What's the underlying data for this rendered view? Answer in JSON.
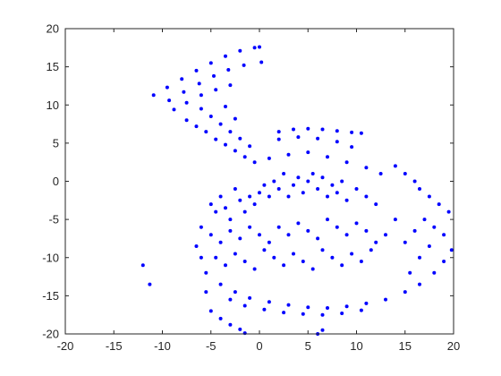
{
  "chart_data": {
    "type": "scatter",
    "title": "",
    "xlabel": "",
    "ylabel": "",
    "xlim": [
      -20,
      20
    ],
    "ylim": [
      -20,
      20
    ],
    "xticks": [
      -20,
      -15,
      -10,
      -5,
      0,
      5,
      10,
      15,
      20
    ],
    "yticks": [
      -20,
      -15,
      -10,
      -5,
      0,
      5,
      10,
      15,
      20
    ],
    "xtick_labels": [
      "-20",
      "-15",
      "-10",
      "-5",
      "0",
      "5",
      "10",
      "15",
      "20"
    ],
    "ytick_labels": [
      "-20",
      "-15",
      "-10",
      "-5",
      "0",
      "5",
      "10",
      "15",
      "20"
    ],
    "grid": false,
    "marker_color": "#0000ff",
    "series": [
      {
        "points": [
          [
            -10.9,
            11.3
          ],
          [
            -9.5,
            12.3
          ],
          [
            -8.0,
            13.4
          ],
          [
            -6.5,
            14.5
          ],
          [
            -5.0,
            15.5
          ],
          [
            -3.5,
            16.4
          ],
          [
            -2.0,
            17.1
          ],
          [
            -0.5,
            17.5
          ],
          [
            0.0,
            17.6
          ],
          [
            -9.3,
            10.6
          ],
          [
            -7.8,
            11.7
          ],
          [
            -6.2,
            12.8
          ],
          [
            -4.7,
            13.8
          ],
          [
            -3.2,
            14.6
          ],
          [
            -1.6,
            15.2
          ],
          [
            0.2,
            15.6
          ],
          [
            -8.8,
            9.4
          ],
          [
            -7.5,
            10.3
          ],
          [
            -6.0,
            11.3
          ],
          [
            -4.5,
            12.0
          ],
          [
            -3.0,
            12.6
          ],
          [
            -7.5,
            8.0
          ],
          [
            -6.5,
            7.2
          ],
          [
            -5.5,
            6.5
          ],
          [
            -4.5,
            5.5
          ],
          [
            -3.5,
            4.8
          ],
          [
            -2.5,
            4.0
          ],
          [
            -1.5,
            3.2
          ],
          [
            -0.5,
            2.5
          ],
          [
            -6.0,
            9.5
          ],
          [
            -5.0,
            8.5
          ],
          [
            -4.0,
            7.5
          ],
          [
            -3.0,
            6.5
          ],
          [
            -2.0,
            5.6
          ],
          [
            -1.0,
            4.6
          ],
          [
            -3.5,
            9.8
          ],
          [
            -2.5,
            8.2
          ],
          [
            2.0,
            6.5
          ],
          [
            3.5,
            6.8
          ],
          [
            5.0,
            6.9
          ],
          [
            6.5,
            6.8
          ],
          [
            8.0,
            6.6
          ],
          [
            9.5,
            6.4
          ],
          [
            10.5,
            6.3
          ],
          [
            2.0,
            5.5
          ],
          [
            4.0,
            5.8
          ],
          [
            6.0,
            5.6
          ],
          [
            8.0,
            5.2
          ],
          [
            9.5,
            4.5
          ],
          [
            1.0,
            3.0
          ],
          [
            3.0,
            3.5
          ],
          [
            5.0,
            3.8
          ],
          [
            7.0,
            3.2
          ],
          [
            9.0,
            2.5
          ],
          [
            11.0,
            1.8
          ],
          [
            12.5,
            1.0
          ],
          [
            14.0,
            2.0
          ],
          [
            15.0,
            1.0
          ],
          [
            16.0,
            0.0
          ],
          [
            16.5,
            -1.0
          ],
          [
            17.5,
            -2.0
          ],
          [
            18.5,
            -3.0
          ],
          [
            19.5,
            -4.0
          ],
          [
            -5.0,
            -3.0
          ],
          [
            -4.5,
            -4.0
          ],
          [
            -4.0,
            -2.0
          ],
          [
            -3.5,
            -3.5
          ],
          [
            -3.0,
            -5.0
          ],
          [
            -2.5,
            -1.0
          ],
          [
            -2.0,
            -2.5
          ],
          [
            -1.5,
            -4.0
          ],
          [
            -1.0,
            -2.0
          ],
          [
            -0.5,
            -3.0
          ],
          [
            0.0,
            -1.5
          ],
          [
            0.5,
            -0.5
          ],
          [
            1.0,
            -2.0
          ],
          [
            1.5,
            0.0
          ],
          [
            2.0,
            -1.0
          ],
          [
            2.5,
            1.0
          ],
          [
            3.0,
            -2.0
          ],
          [
            3.5,
            -0.5
          ],
          [
            4.0,
            0.5
          ],
          [
            4.5,
            -1.5
          ],
          [
            5.0,
            0.0
          ],
          [
            5.5,
            1.0
          ],
          [
            6.0,
            -1.0
          ],
          [
            6.5,
            0.5
          ],
          [
            7.0,
            -2.0
          ],
          [
            7.5,
            -0.5
          ],
          [
            8.0,
            -1.5
          ],
          [
            8.5,
            0.0
          ],
          [
            9.0,
            -2.5
          ],
          [
            10.0,
            -1.0
          ],
          [
            11.0,
            -2.0
          ],
          [
            12.0,
            -3.0
          ],
          [
            -6.0,
            -6.0
          ],
          [
            -5.0,
            -7.0
          ],
          [
            -4.0,
            -8.0
          ],
          [
            -3.0,
            -6.5
          ],
          [
            -2.0,
            -7.5
          ],
          [
            -1.0,
            -6.0
          ],
          [
            0.0,
            -7.0
          ],
          [
            1.0,
            -8.0
          ],
          [
            2.0,
            -6.0
          ],
          [
            3.0,
            -7.0
          ],
          [
            4.0,
            -5.5
          ],
          [
            5.0,
            -6.5
          ],
          [
            6.0,
            -7.5
          ],
          [
            7.0,
            -5.0
          ],
          [
            8.0,
            -6.0
          ],
          [
            9.0,
            -7.0
          ],
          [
            10.0,
            -5.5
          ],
          [
            11.0,
            -6.5
          ],
          [
            12.0,
            -8.0
          ],
          [
            13.0,
            -7.0
          ],
          [
            14.0,
            -5.0
          ],
          [
            -4.5,
            -10.0
          ],
          [
            -3.5,
            -11.0
          ],
          [
            -2.5,
            -9.5
          ],
          [
            -1.5,
            -10.5
          ],
          [
            -0.5,
            -11.5
          ],
          [
            0.5,
            -9.0
          ],
          [
            1.5,
            -10.0
          ],
          [
            2.5,
            -11.0
          ],
          [
            3.5,
            -9.5
          ],
          [
            4.5,
            -10.5
          ],
          [
            5.5,
            -11.5
          ],
          [
            6.5,
            -9.0
          ],
          [
            7.5,
            -10.0
          ],
          [
            8.5,
            -11.0
          ],
          [
            9.5,
            -9.5
          ],
          [
            10.5,
            -10.5
          ],
          [
            11.5,
            -9.0
          ],
          [
            -4.0,
            -13.5
          ],
          [
            -2.5,
            -14.5
          ],
          [
            -1.0,
            -15.3
          ],
          [
            1.0,
            -15.8
          ],
          [
            3.0,
            -16.2
          ],
          [
            5.0,
            -16.5
          ],
          [
            7.0,
            -16.6
          ],
          [
            9.0,
            -16.4
          ],
          [
            11.0,
            -16.0
          ],
          [
            13.0,
            -15.5
          ],
          [
            15.0,
            -14.5
          ],
          [
            16.5,
            -13.5
          ],
          [
            18.0,
            -12.0
          ],
          [
            19.0,
            -10.5
          ],
          [
            19.8,
            -9.0
          ],
          [
            -3.0,
            -15.5
          ],
          [
            -1.5,
            -16.3
          ],
          [
            0.5,
            -16.8
          ],
          [
            2.5,
            -17.2
          ],
          [
            4.5,
            -17.4
          ],
          [
            6.5,
            -17.5
          ],
          [
            8.5,
            -17.3
          ],
          [
            10.5,
            -16.9
          ],
          [
            -5.0,
            -17.0
          ],
          [
            -4.0,
            -18.0
          ],
          [
            -3.0,
            -18.8
          ],
          [
            -2.0,
            -19.4
          ],
          [
            -1.5,
            -19.9
          ],
          [
            6.5,
            -19.5
          ],
          [
            6.0,
            -20.0
          ],
          [
            -5.5,
            -12.0
          ],
          [
            -6.0,
            -10.0
          ],
          [
            -6.5,
            -8.5
          ],
          [
            -5.5,
            -14.5
          ],
          [
            15.0,
            -8.0
          ],
          [
            16.0,
            -6.5
          ],
          [
            17.0,
            -5.0
          ],
          [
            18.0,
            -6.0
          ],
          [
            17.5,
            -8.5
          ],
          [
            16.5,
            -10.0
          ],
          [
            15.5,
            -12.0
          ],
          [
            19.0,
            -7.0
          ],
          [
            -12.0,
            -11.0
          ],
          [
            -11.3,
            -13.5
          ]
        ]
      }
    ]
  }
}
